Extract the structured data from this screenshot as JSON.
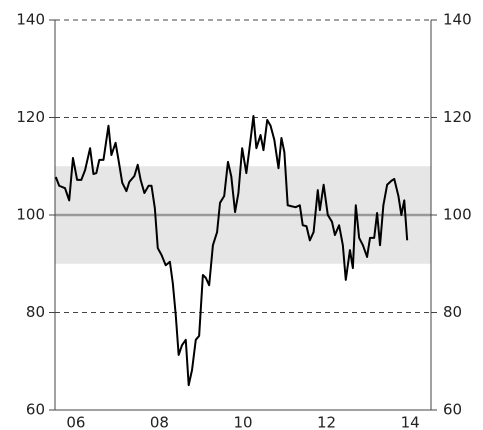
{
  "chart_data": {
    "type": "line",
    "x": [
      2006.02,
      2006.1,
      2006.24,
      2006.34,
      2006.43,
      2006.53,
      2006.63,
      2006.72,
      2006.84,
      2006.92,
      2006.99,
      2007.06,
      2007.16,
      2007.28,
      2007.35,
      2007.45,
      2007.52,
      2007.61,
      2007.71,
      2007.78,
      2007.9,
      2007.98,
      2008.05,
      2008.14,
      2008.24,
      2008.31,
      2008.39,
      2008.46,
      2008.55,
      2008.65,
      2008.75,
      2008.82,
      2008.89,
      2008.96,
      2009.04,
      2009.13,
      2009.2,
      2009.28,
      2009.37,
      2009.45,
      2009.54,
      2009.61,
      2009.69,
      2009.78,
      2009.88,
      2009.95,
      2010.05,
      2010.14,
      2010.22,
      2010.31,
      2010.39,
      2010.48,
      2010.58,
      2010.65,
      2010.75,
      2010.82,
      2010.92,
      2010.99,
      2011.08,
      2011.16,
      2011.25,
      2011.35,
      2011.42,
      2011.49,
      2011.57,
      2011.66,
      2011.76,
      2011.86,
      2011.93,
      2012.02,
      2012.1,
      2012.19,
      2012.29,
      2012.34,
      2012.43,
      2012.53,
      2012.63,
      2012.7,
      2012.8,
      2012.89,
      2012.96,
      2013.06,
      2013.13,
      2013.2,
      2013.28,
      2013.37,
      2013.47,
      2013.54,
      2013.64,
      2013.71,
      2013.78,
      2013.86,
      2013.95,
      2014.05,
      2014.12,
      2014.22,
      2014.29,
      2014.36,
      2014.43
    ],
    "series": [
      {
        "color": "#000000",
        "values": [
          107.8,
          106,
          105.5,
          103,
          111.7,
          107.2,
          107.2,
          109.2,
          113.7,
          108.4,
          108.6,
          111.3,
          111.3,
          118.3,
          112.3,
          114.8,
          111.3,
          106.6,
          104.9,
          106.8,
          108,
          110.3,
          107.2,
          104.5,
          106,
          106,
          101.4,
          93.2,
          91.8,
          89.7,
          90.4,
          86,
          79.5,
          71.3,
          73.3,
          74.4,
          65.1,
          68.2,
          74.4,
          75.2,
          87.7,
          87.1,
          85.6,
          93.8,
          96.5,
          102.5,
          103.9,
          110.9,
          107.9,
          100.6,
          104.5,
          113.7,
          108.6,
          113.3,
          120.3,
          113.7,
          116.4,
          113.3,
          119.5,
          118.3,
          115.4,
          109.6,
          115.8,
          112.9,
          102,
          101.8,
          101.6,
          102,
          97.9,
          97.7,
          94.8,
          96.5,
          105.1,
          101,
          106.2,
          100,
          98.6,
          95.9,
          97.9,
          93.8,
          86.7,
          92.8,
          89.1,
          102,
          95.3,
          93.8,
          91.4,
          95.3,
          95.3,
          100.4,
          93.8,
          102,
          106.2,
          107,
          107.4,
          103.9,
          100,
          103,
          94.8
        ]
      }
    ],
    "xlim": [
      2006,
      2015
    ],
    "xticks": [
      {
        "value": 2006.5,
        "label": "06"
      },
      {
        "value": 2008.5,
        "label": "08"
      },
      {
        "value": 2010.5,
        "label": "10"
      },
      {
        "value": 2012.5,
        "label": "12"
      },
      {
        "value": 2014.5,
        "label": "14"
      }
    ],
    "ylim": [
      60,
      140
    ],
    "yticks": [
      60,
      80,
      100,
      120,
      140
    ],
    "band": [
      90,
      110
    ],
    "band_color": "#e6e6e6",
    "reference_line": 100,
    "reference_color": "#999999",
    "grid": true
  }
}
